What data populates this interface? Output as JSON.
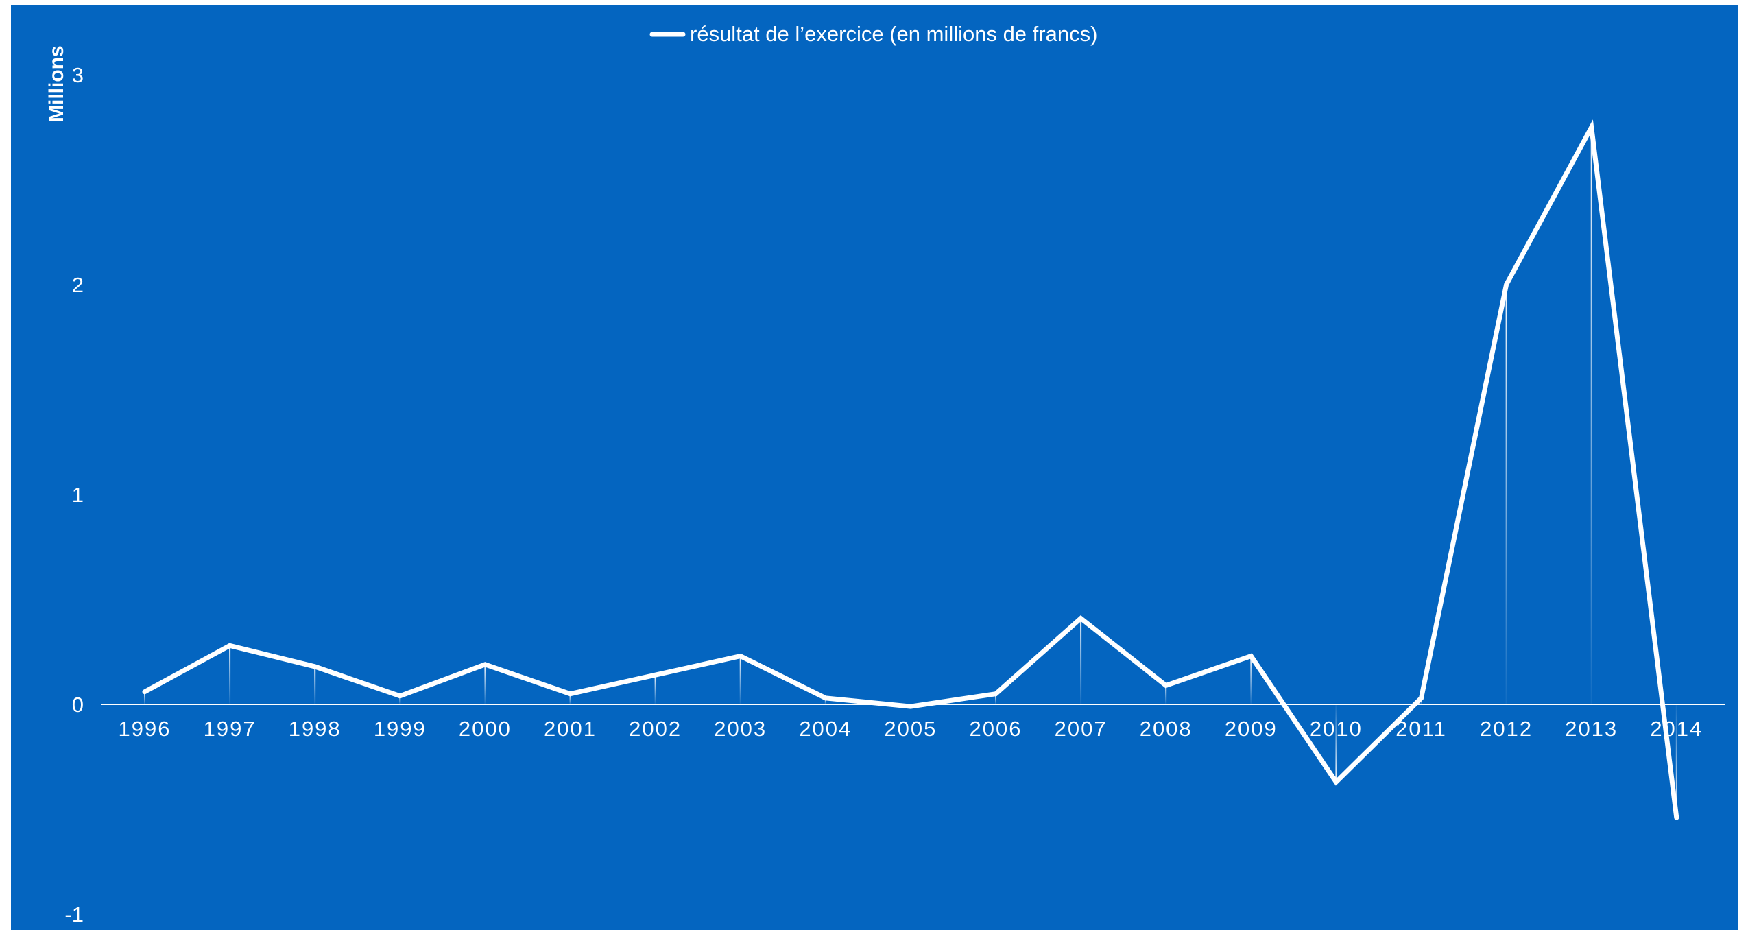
{
  "colors": {
    "background": "#0465C0",
    "line": "#ffffff",
    "axis": "#ffffff"
  },
  "chart_data": {
    "type": "line",
    "title": "",
    "xlabel": "",
    "ylabel": "Millions",
    "ylim": [
      -1,
      3
    ],
    "yticks": [
      "-1",
      "0",
      "1",
      "2",
      "3"
    ],
    "grid": false,
    "legend_position": "top-center",
    "categories": [
      "1996",
      "1997",
      "1998",
      "1999",
      "2000",
      "2001",
      "2002",
      "2003",
      "2004",
      "2005",
      "2006",
      "2007",
      "2008",
      "2009",
      "2010",
      "2011",
      "2012",
      "2013",
      "2014"
    ],
    "series": [
      {
        "name": "résultat de l’exercice (en millions de francs)",
        "values": [
          0.06,
          0.28,
          0.18,
          0.04,
          0.19,
          0.05,
          0.14,
          0.23,
          0.03,
          -0.01,
          0.05,
          0.41,
          0.09,
          0.23,
          -0.37,
          0.03,
          2.0,
          2.75,
          -0.54
        ]
      }
    ]
  }
}
